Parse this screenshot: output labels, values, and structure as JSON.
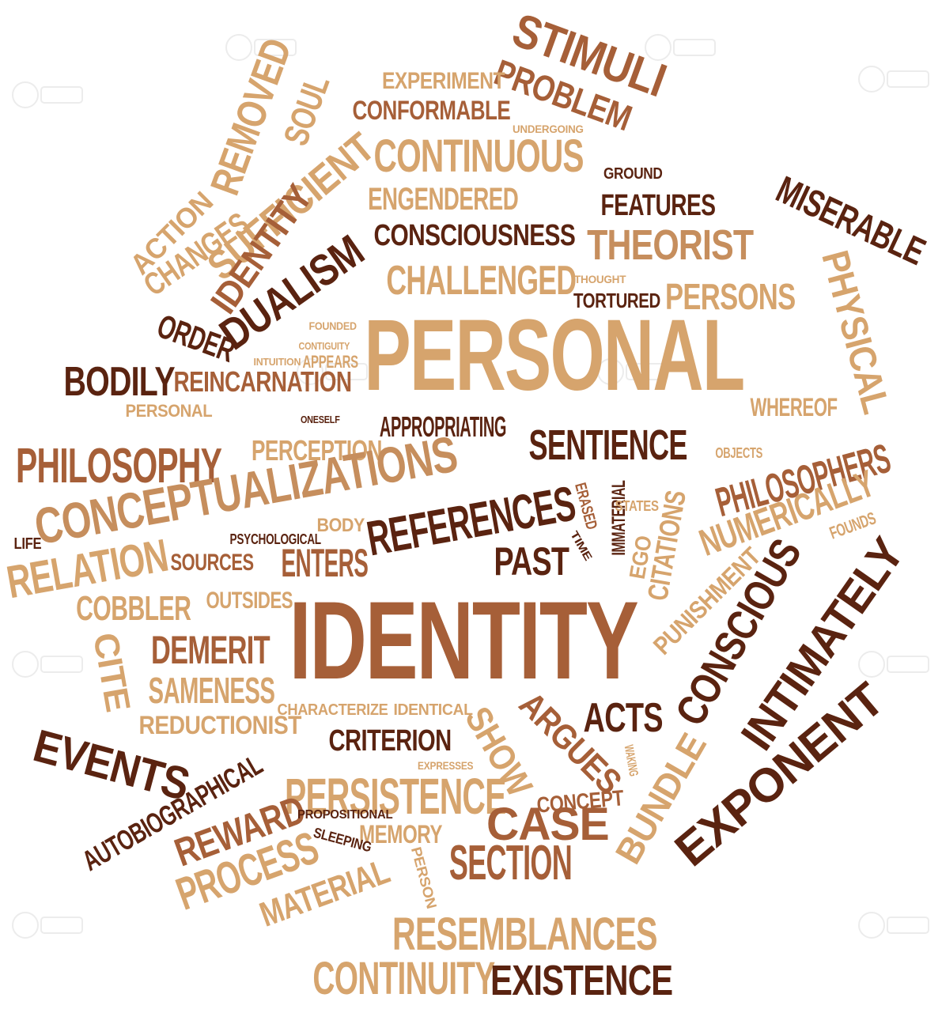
{
  "colors": {
    "dark_brown": "#5a2310",
    "medium_brown": "#a65f38",
    "light_tan": "#d6a46d",
    "tan": "#c68e5d"
  },
  "words": [
    {
      "text": "PERSONAL",
      "color": "light_tan"
    },
    {
      "text": "IDENTITY",
      "color": "medium_brown"
    },
    {
      "text": "STIMULI",
      "color": "medium_brown"
    },
    {
      "text": "PROBLEM",
      "color": "medium_brown"
    },
    {
      "text": "EXPERIMENT",
      "color": "light_tan"
    },
    {
      "text": "CONFORMABLE",
      "color": "medium_brown"
    },
    {
      "text": "UNDERGOING",
      "color": "light_tan"
    },
    {
      "text": "REMOVED",
      "color": "light_tan"
    },
    {
      "text": "SOUL",
      "color": "light_tan"
    },
    {
      "text": "CONTINUOUS",
      "color": "light_tan"
    },
    {
      "text": "ENGENDERED",
      "color": "light_tan"
    },
    {
      "text": "GROUND",
      "color": "dark_brown"
    },
    {
      "text": "FEATURES",
      "color": "dark_brown"
    },
    {
      "text": "MISERABLE",
      "color": "dark_brown"
    },
    {
      "text": "SUFFICIENT",
      "color": "light_tan"
    },
    {
      "text": "ACTION",
      "color": "light_tan"
    },
    {
      "text": "CHANGES",
      "color": "light_tan"
    },
    {
      "text": "IDENTITY",
      "color": "medium_brown"
    },
    {
      "text": "CONSCIOUSNESS",
      "color": "dark_brown"
    },
    {
      "text": "THEORIST",
      "color": "tan"
    },
    {
      "text": "DUALISM",
      "color": "dark_brown"
    },
    {
      "text": "CHALLENGED",
      "color": "light_tan"
    },
    {
      "text": "THOUGHT",
      "color": "light_tan"
    },
    {
      "text": "TORTURED",
      "color": "dark_brown"
    },
    {
      "text": "PERSONS",
      "color": "light_tan"
    },
    {
      "text": "PHYSICAL",
      "color": "light_tan"
    },
    {
      "text": "ORDER",
      "color": "dark_brown"
    },
    {
      "text": "FOUNDED",
      "color": "light_tan"
    },
    {
      "text": "CONTIGUITY",
      "color": "light_tan"
    },
    {
      "text": "INTUITION",
      "color": "light_tan"
    },
    {
      "text": "APPEARS",
      "color": "light_tan"
    },
    {
      "text": "BODILY",
      "color": "dark_brown"
    },
    {
      "text": "REINCARNATION",
      "color": "medium_brown"
    },
    {
      "text": "WHEREOF",
      "color": "light_tan"
    },
    {
      "text": "PERSONAL",
      "color": "light_tan"
    },
    {
      "text": "ONESELF",
      "color": "dark_brown"
    },
    {
      "text": "APPROPRIATING",
      "color": "dark_brown"
    },
    {
      "text": "SENTIENCE",
      "color": "dark_brown"
    },
    {
      "text": "PHILOSOPHY",
      "color": "medium_brown"
    },
    {
      "text": "PERCEPTION",
      "color": "light_tan"
    },
    {
      "text": "OBJECTS",
      "color": "light_tan"
    },
    {
      "text": "PHILOSOPHERS",
      "color": "medium_brown"
    },
    {
      "text": "CONCEPTUALIZATIONS",
      "color": "tan"
    },
    {
      "text": "REFERENCES",
      "color": "dark_brown"
    },
    {
      "text": "ERASED",
      "color": "medium_brown"
    },
    {
      "text": "IMMATERIAL",
      "color": "dark_brown"
    },
    {
      "text": "STATES",
      "color": "light_tan"
    },
    {
      "text": "CITATIONS",
      "color": "light_tan"
    },
    {
      "text": "NUMERICALLY",
      "color": "light_tan"
    },
    {
      "text": "LIFE",
      "color": "dark_brown"
    },
    {
      "text": "PSYCHOLOGICAL",
      "color": "dark_brown"
    },
    {
      "text": "BODY",
      "color": "light_tan"
    },
    {
      "text": "TIME",
      "color": "dark_brown"
    },
    {
      "text": "EGO",
      "color": "light_tan"
    },
    {
      "text": "FOUNDS",
      "color": "light_tan"
    },
    {
      "text": "RELATION",
      "color": "light_tan"
    },
    {
      "text": "SOURCES",
      "color": "medium_brown"
    },
    {
      "text": "ENTERS",
      "color": "medium_brown"
    },
    {
      "text": "PAST",
      "color": "dark_brown"
    },
    {
      "text": "COBBLER",
      "color": "light_tan"
    },
    {
      "text": "OUTSIDES",
      "color": "light_tan"
    },
    {
      "text": "PUNISHMENT",
      "color": "light_tan"
    },
    {
      "text": "CONSCIOUS",
      "color": "dark_brown"
    },
    {
      "text": "INTIMATELY",
      "color": "dark_brown"
    },
    {
      "text": "CITE",
      "color": "light_tan"
    },
    {
      "text": "DEMERIT",
      "color": "medium_brown"
    },
    {
      "text": "SAMENESS",
      "color": "light_tan"
    },
    {
      "text": "CHARACTERIZE",
      "color": "light_tan"
    },
    {
      "text": "IDENTICAL",
      "color": "light_tan"
    },
    {
      "text": "REDUCTIONIST",
      "color": "light_tan"
    },
    {
      "text": "ACTS",
      "color": "dark_brown"
    },
    {
      "text": "WAKING",
      "color": "light_tan"
    },
    {
      "text": "EXPONENT",
      "color": "dark_brown"
    },
    {
      "text": "CRITERION",
      "color": "dark_brown"
    },
    {
      "text": "SHOW",
      "color": "light_tan"
    },
    {
      "text": "ARGUES",
      "color": "medium_brown"
    },
    {
      "text": "EVENTS",
      "color": "dark_brown"
    },
    {
      "text": "BUNDLE",
      "color": "light_tan"
    },
    {
      "text": "EXPRESSES",
      "color": "light_tan"
    },
    {
      "text": "AUTOBIOGRAPHICAL",
      "color": "dark_brown"
    },
    {
      "text": "PERSISTENCE",
      "color": "light_tan"
    },
    {
      "text": "CONCEPT",
      "color": "medium_brown"
    },
    {
      "text": "CASE",
      "color": "medium_brown"
    },
    {
      "text": "REWARD",
      "color": "medium_brown"
    },
    {
      "text": "PROPOSITIONAL",
      "color": "dark_brown"
    },
    {
      "text": "MEMORY",
      "color": "light_tan"
    },
    {
      "text": "SLEEPING",
      "color": "dark_brown"
    },
    {
      "text": "SECTION",
      "color": "medium_brown"
    },
    {
      "text": "PROCESS",
      "color": "light_tan"
    },
    {
      "text": "PERSON",
      "color": "light_tan"
    },
    {
      "text": "MATERIAL",
      "color": "light_tan"
    },
    {
      "text": "RESEMBLANCES",
      "color": "light_tan"
    },
    {
      "text": "CONTINUITY",
      "color": "light_tan"
    },
    {
      "text": "EXISTENCE",
      "color": "dark_brown"
    }
  ],
  "watermark_icon": "123rf-watermark"
}
